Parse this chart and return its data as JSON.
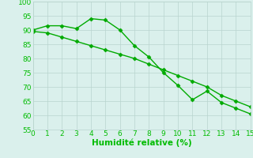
{
  "line1_x": [
    0,
    1,
    2,
    3,
    4,
    5,
    6,
    7,
    8,
    9,
    10,
    11,
    12,
    13,
    14,
    15
  ],
  "line1_y": [
    90,
    91.5,
    91.5,
    90.5,
    94,
    93.5,
    90,
    84.5,
    80.5,
    75,
    70.5,
    65.5,
    68.5,
    64.5,
    62.5,
    60.5
  ],
  "line2_x": [
    0,
    1,
    2,
    3,
    4,
    5,
    6,
    7,
    8,
    9,
    10,
    11,
    12,
    13,
    14,
    15
  ],
  "line2_y": [
    89.5,
    89,
    87.5,
    86,
    84.5,
    83,
    81.5,
    80,
    78,
    76,
    74,
    72,
    70,
    67,
    65,
    63
  ],
  "line_color": "#00aa00",
  "marker": "D",
  "markersize": 2.5,
  "xlabel": "Humidité relative (%)",
  "xlabel_color": "#00bb00",
  "xlim": [
    0,
    15
  ],
  "ylim": [
    55,
    100
  ],
  "yticks": [
    55,
    60,
    65,
    70,
    75,
    80,
    85,
    90,
    95,
    100
  ],
  "xticks": [
    0,
    1,
    2,
    3,
    4,
    5,
    6,
    7,
    8,
    9,
    10,
    11,
    12,
    13,
    14,
    15
  ],
  "background_color": "#daf0ec",
  "grid_color": "#b8d4ce",
  "tick_color": "#00bb00",
  "tick_labelsize": 6.5,
  "xlabel_fontsize": 7.5,
  "linewidth": 1.0
}
